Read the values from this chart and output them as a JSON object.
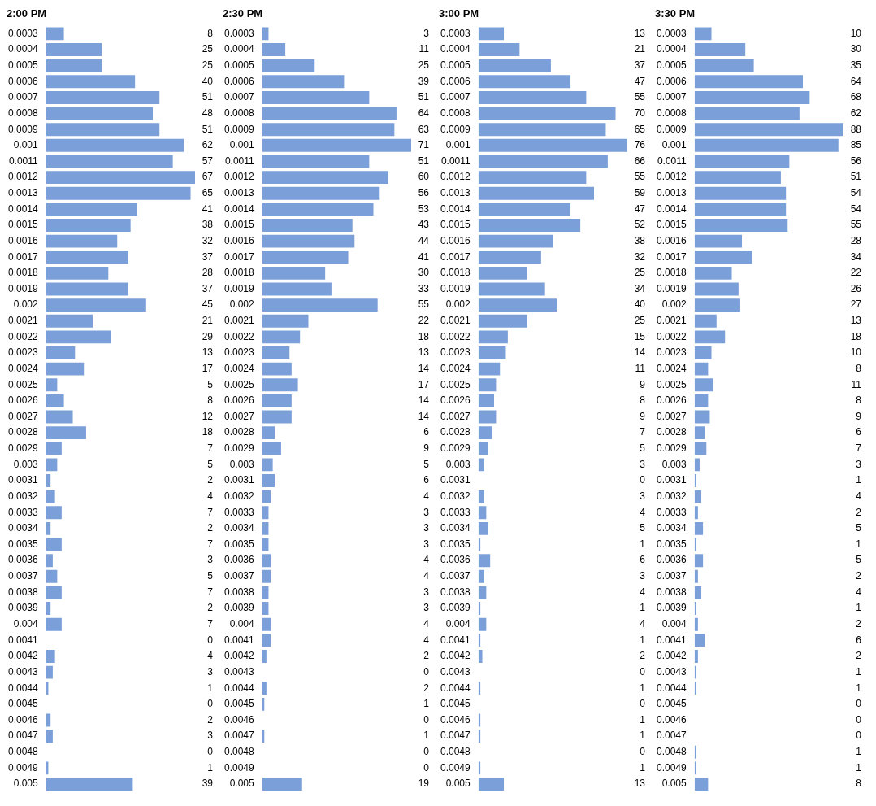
{
  "chart_data": [
    {
      "type": "bar",
      "orientation": "horizontal",
      "title": "2:00 PM",
      "color": "#7b9fd8",
      "data_labels": true,
      "grid": false,
      "legend": false,
      "categories": [
        "0.0003",
        "0.0004",
        "0.0005",
        "0.0006",
        "0.0007",
        "0.0008",
        "0.0009",
        "0.001",
        "0.0011",
        "0.0012",
        "0.0013",
        "0.0014",
        "0.0015",
        "0.0016",
        "0.0017",
        "0.0018",
        "0.0019",
        "0.002",
        "0.0021",
        "0.0022",
        "0.0023",
        "0.0024",
        "0.0025",
        "0.0026",
        "0.0027",
        "0.0028",
        "0.0029",
        "0.003",
        "0.0031",
        "0.0032",
        "0.0033",
        "0.0034",
        "0.0035",
        "0.0036",
        "0.0037",
        "0.0038",
        "0.0039",
        "0.004",
        "0.0041",
        "0.0042",
        "0.0043",
        "0.0044",
        "0.0045",
        "0.0046",
        "0.0047",
        "0.0048",
        "0.0049",
        "0.005"
      ],
      "values": [
        8,
        25,
        25,
        40,
        51,
        48,
        51,
        62,
        57,
        67,
        65,
        41,
        38,
        32,
        37,
        28,
        37,
        45,
        21,
        29,
        13,
        17,
        5,
        8,
        12,
        18,
        7,
        5,
        2,
        4,
        7,
        2,
        7,
        3,
        5,
        7,
        2,
        7,
        0,
        4,
        3,
        1,
        0,
        2,
        3,
        0,
        1,
        39
      ]
    },
    {
      "type": "bar",
      "orientation": "horizontal",
      "title": "2:30 PM",
      "color": "#7b9fd8",
      "data_labels": true,
      "grid": false,
      "legend": false,
      "categories": [
        "0.0003",
        "0.0004",
        "0.0005",
        "0.0006",
        "0.0007",
        "0.0008",
        "0.0009",
        "0.001",
        "0.0011",
        "0.0012",
        "0.0013",
        "0.0014",
        "0.0015",
        "0.0016",
        "0.0017",
        "0.0018",
        "0.0019",
        "0.002",
        "0.0021",
        "0.0022",
        "0.0023",
        "0.0024",
        "0.0025",
        "0.0026",
        "0.0027",
        "0.0028",
        "0.0029",
        "0.003",
        "0.0031",
        "0.0032",
        "0.0033",
        "0.0034",
        "0.0035",
        "0.0036",
        "0.0037",
        "0.0038",
        "0.0039",
        "0.004",
        "0.0041",
        "0.0042",
        "0.0043",
        "0.0044",
        "0.0045",
        "0.0046",
        "0.0047",
        "0.0048",
        "0.0049",
        "0.005"
      ],
      "values": [
        3,
        11,
        25,
        39,
        51,
        64,
        63,
        71,
        51,
        60,
        56,
        53,
        43,
        44,
        41,
        30,
        33,
        55,
        22,
        18,
        13,
        14,
        17,
        14,
        14,
        6,
        9,
        5,
        6,
        4,
        3,
        3,
        3,
        4,
        4,
        3,
        3,
        4,
        4,
        2,
        0,
        2,
        1,
        0,
        1,
        0,
        0,
        19
      ]
    },
    {
      "type": "bar",
      "orientation": "horizontal",
      "title": "3:00 PM",
      "color": "#7b9fd8",
      "data_labels": true,
      "grid": false,
      "legend": false,
      "categories": [
        "0.0003",
        "0.0004",
        "0.0005",
        "0.0006",
        "0.0007",
        "0.0008",
        "0.0009",
        "0.001",
        "0.0011",
        "0.0012",
        "0.0013",
        "0.0014",
        "0.0015",
        "0.0016",
        "0.0017",
        "0.0018",
        "0.0019",
        "0.002",
        "0.0021",
        "0.0022",
        "0.0023",
        "0.0024",
        "0.0025",
        "0.0026",
        "0.0027",
        "0.0028",
        "0.0029",
        "0.003",
        "0.0031",
        "0.0032",
        "0.0033",
        "0.0034",
        "0.0035",
        "0.0036",
        "0.0037",
        "0.0038",
        "0.0039",
        "0.004",
        "0.0041",
        "0.0042",
        "0.0043",
        "0.0044",
        "0.0045",
        "0.0046",
        "0.0047",
        "0.0048",
        "0.0049",
        "0.005"
      ],
      "values": [
        13,
        21,
        37,
        47,
        55,
        70,
        65,
        76,
        66,
        55,
        59,
        47,
        52,
        38,
        32,
        25,
        34,
        40,
        25,
        15,
        14,
        11,
        9,
        8,
        9,
        7,
        5,
        3,
        0,
        3,
        4,
        5,
        1,
        6,
        3,
        4,
        1,
        4,
        1,
        2,
        0,
        1,
        0,
        1,
        1,
        0,
        1,
        13
      ]
    },
    {
      "type": "bar",
      "orientation": "horizontal",
      "title": "3:30 PM",
      "color": "#7b9fd8",
      "data_labels": true,
      "grid": false,
      "legend": false,
      "categories": [
        "0.0003",
        "0.0004",
        "0.0005",
        "0.0006",
        "0.0007",
        "0.0008",
        "0.0009",
        "0.001",
        "0.0011",
        "0.0012",
        "0.0013",
        "0.0014",
        "0.0015",
        "0.0016",
        "0.0017",
        "0.0018",
        "0.0019",
        "0.002",
        "0.0021",
        "0.0022",
        "0.0023",
        "0.0024",
        "0.0025",
        "0.0026",
        "0.0027",
        "0.0028",
        "0.0029",
        "0.003",
        "0.0031",
        "0.0032",
        "0.0033",
        "0.0034",
        "0.0035",
        "0.0036",
        "0.0037",
        "0.0038",
        "0.0039",
        "0.004",
        "0.0041",
        "0.0042",
        "0.0043",
        "0.0044",
        "0.0045",
        "0.0046",
        "0.0047",
        "0.0048",
        "0.0049",
        "0.005"
      ],
      "values": [
        10,
        30,
        35,
        64,
        68,
        62,
        88,
        85,
        56,
        51,
        54,
        54,
        55,
        28,
        34,
        22,
        26,
        27,
        13,
        18,
        10,
        8,
        11,
        8,
        9,
        6,
        7,
        3,
        1,
        4,
        2,
        5,
        1,
        5,
        2,
        4,
        1,
        2,
        6,
        2,
        1,
        1,
        0,
        0,
        0,
        1,
        1,
        8
      ]
    }
  ]
}
